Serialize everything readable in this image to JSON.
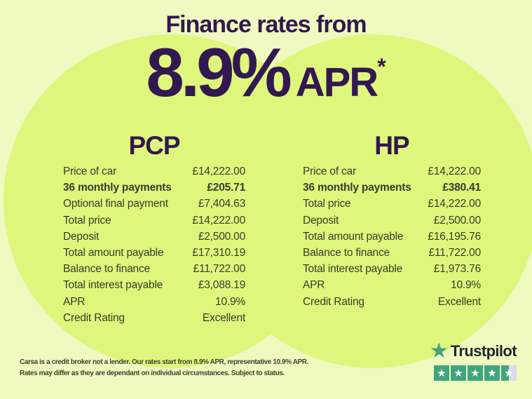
{
  "header": {
    "title": "Finance rates from",
    "rate": "8.9%",
    "rate_suffix": "APR",
    "rate_footnote_marker": "*"
  },
  "tables": [
    {
      "title": "PCP",
      "rows": [
        {
          "label": "Price of car",
          "value": "£14,222.00",
          "bold": false
        },
        {
          "label": "36 monthly payments",
          "value": "£205.71",
          "bold": true
        },
        {
          "label": "Optional final payment",
          "value": "£7,404.63",
          "bold": false
        },
        {
          "label": "Total price",
          "value": "£14,222.00",
          "bold": false
        },
        {
          "label": "Deposit",
          "value": "£2,500.00",
          "bold": false
        },
        {
          "label": "Total amount payable",
          "value": "£17,310.19",
          "bold": false
        },
        {
          "label": "Balance to finance",
          "value": "£11,722.00",
          "bold": false
        },
        {
          "label": "Total interest payable",
          "value": "£3,088.19",
          "bold": false
        },
        {
          "label": "APR",
          "value": "10.9%",
          "bold": false
        },
        {
          "label": "Credit Rating",
          "value": "Excellent",
          "bold": false
        }
      ]
    },
    {
      "title": "HP",
      "rows": [
        {
          "label": "Price of car",
          "value": "£14,222.00",
          "bold": false
        },
        {
          "label": "36 monthly payments",
          "value": "£380.41",
          "bold": true
        },
        {
          "label": "Total price",
          "value": "£14,222.00",
          "bold": false
        },
        {
          "label": "Deposit",
          "value": "£2,500.00",
          "bold": false
        },
        {
          "label": "Total amount payable",
          "value": "£16,195.76",
          "bold": false
        },
        {
          "label": "Balance to finance",
          "value": "£11,722.00",
          "bold": false
        },
        {
          "label": "Total interest payable",
          "value": "£1,973.76",
          "bold": false
        },
        {
          "label": "APR",
          "value": "10.9%",
          "bold": false
        },
        {
          "label": "Credit Rating",
          "value": "Excellent",
          "bold": false
        }
      ]
    }
  ],
  "footer": {
    "disclaimer_line1": "Carsa is a credit broker not a lender. Our rates start from 8.9% APR, representative 10.9% APR.",
    "disclaimer_line2": "Rates may differ as they are dependant on individual circumstances. Subject to status.",
    "trustpilot": {
      "brand": "Trustpilot",
      "rating": 4.5,
      "star_glyph": "★"
    }
  },
  "colors": {
    "background": "#eff9c0",
    "circle": "#dff67c",
    "heading_purple": "#321851",
    "table_text": "#333e2b",
    "disclaimer_text": "#3c462f",
    "trustpilot_green": "#41a57c",
    "trustpilot_empty_star": "#d9dbea",
    "trustpilot_text": "#23262e"
  }
}
